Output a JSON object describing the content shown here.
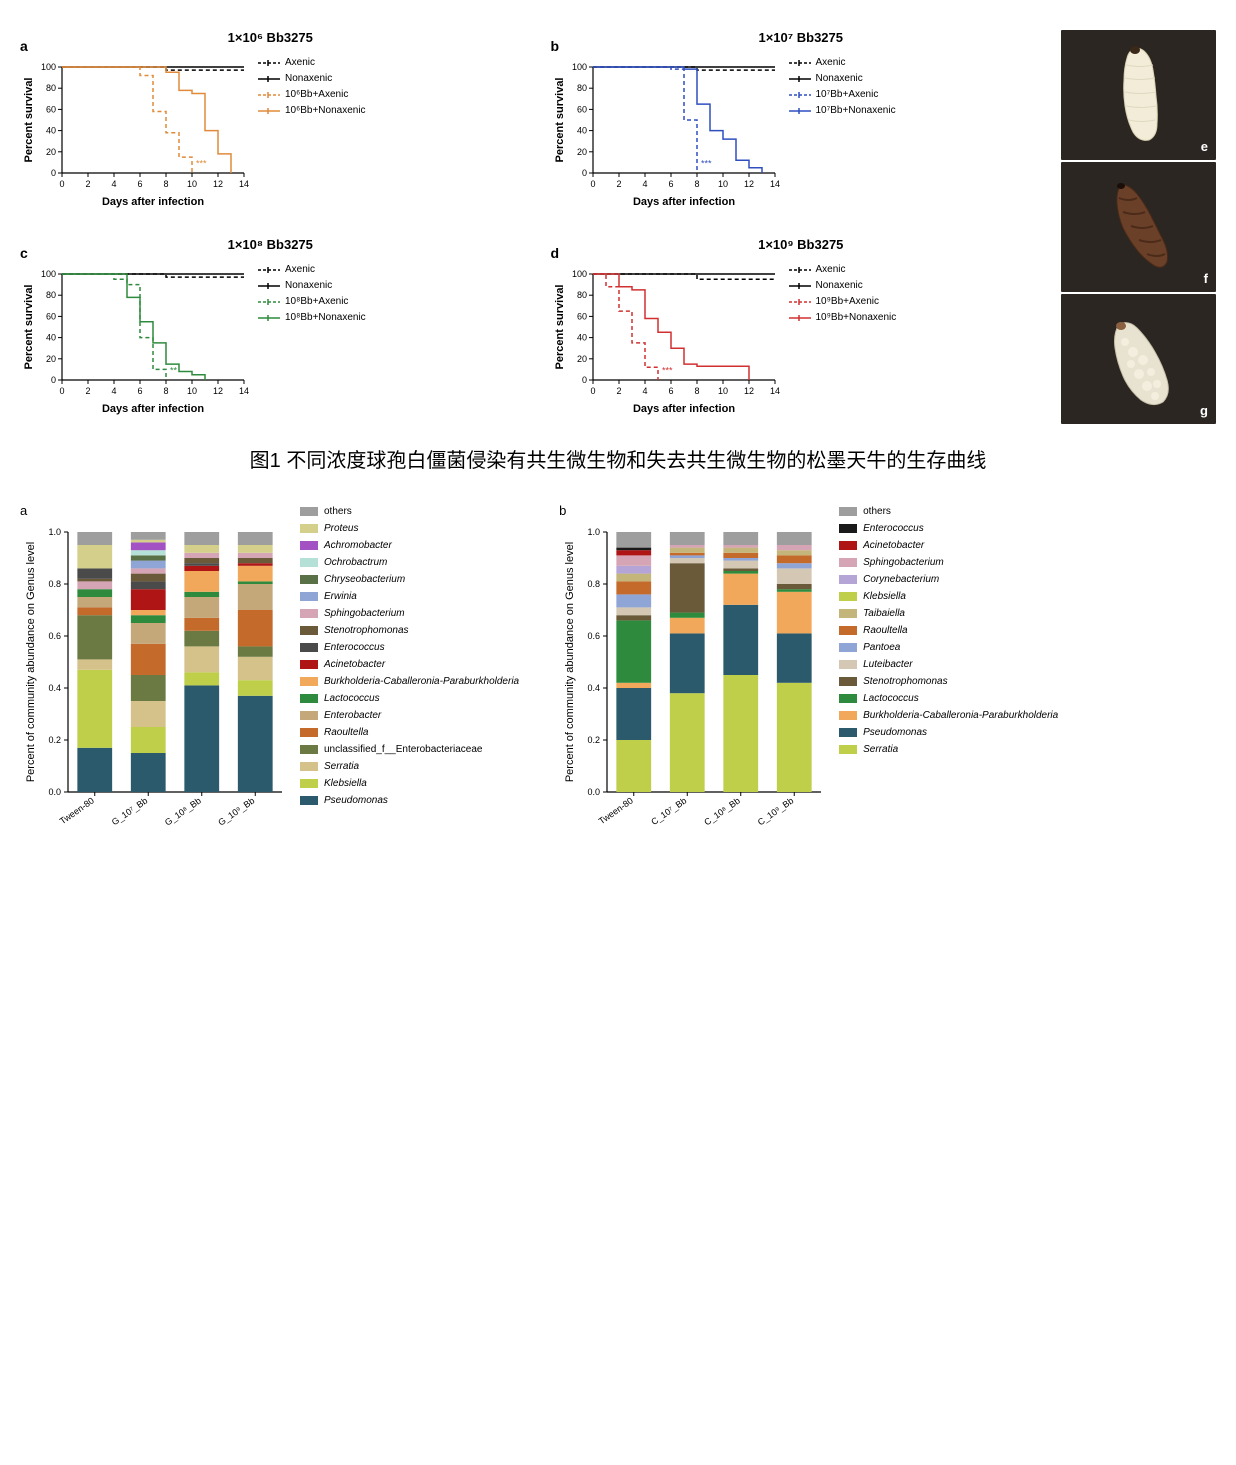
{
  "fig1": {
    "panels": [
      {
        "id": "a",
        "title": "1×10⁶ Bb3275",
        "color": "#e08a3a",
        "sig": "***",
        "legend": [
          "Axenic",
          "Nonaxenic",
          "10⁶Bb+Axenic",
          "10⁶Bb+Nonaxenic"
        ],
        "axenic_dashed": [
          [
            0,
            100
          ],
          [
            8,
            100
          ],
          [
            8,
            97
          ],
          [
            14,
            97
          ]
        ],
        "nonaxenic_solid": [
          [
            0,
            100
          ],
          [
            14,
            100
          ]
        ],
        "treat_dashed": [
          [
            0,
            100
          ],
          [
            6,
            100
          ],
          [
            6,
            92
          ],
          [
            7,
            92
          ],
          [
            7,
            58
          ],
          [
            8,
            58
          ],
          [
            8,
            38
          ],
          [
            9,
            38
          ],
          [
            9,
            15
          ],
          [
            10,
            15
          ],
          [
            10,
            0
          ]
        ],
        "treat_solid": [
          [
            0,
            100
          ],
          [
            8,
            100
          ],
          [
            8,
            95
          ],
          [
            9,
            95
          ],
          [
            9,
            78
          ],
          [
            10,
            78
          ],
          [
            10,
            75
          ],
          [
            11,
            75
          ],
          [
            11,
            40
          ],
          [
            12,
            40
          ],
          [
            12,
            18
          ],
          [
            13,
            18
          ],
          [
            13,
            0
          ]
        ]
      },
      {
        "id": "b",
        "title": "1×10⁷ Bb3275",
        "color": "#2f4fbf",
        "sig": "***",
        "legend": [
          "Axenic",
          "Nonaxenic",
          "10⁷Bb+Axenic",
          "10⁷Bb+Nonaxenic"
        ],
        "axenic_dashed": [
          [
            0,
            100
          ],
          [
            8,
            100
          ],
          [
            8,
            97
          ],
          [
            14,
            97
          ]
        ],
        "nonaxenic_solid": [
          [
            0,
            100
          ],
          [
            14,
            100
          ]
        ],
        "treat_dashed": [
          [
            0,
            100
          ],
          [
            6,
            100
          ],
          [
            6,
            98
          ],
          [
            7,
            98
          ],
          [
            7,
            50
          ],
          [
            8,
            50
          ],
          [
            8,
            0
          ]
        ],
        "treat_solid": [
          [
            0,
            100
          ],
          [
            7,
            100
          ],
          [
            7,
            98
          ],
          [
            8,
            98
          ],
          [
            8,
            65
          ],
          [
            9,
            65
          ],
          [
            9,
            40
          ],
          [
            10,
            40
          ],
          [
            10,
            32
          ],
          [
            11,
            32
          ],
          [
            11,
            12
          ],
          [
            12,
            12
          ],
          [
            12,
            5
          ],
          [
            13,
            5
          ],
          [
            13,
            0
          ]
        ]
      },
      {
        "id": "c",
        "title": "1×10⁸ Bb3275",
        "color": "#2e8b3d",
        "sig": "**",
        "legend": [
          "Axenic",
          "Nonaxenic",
          "10⁸Bb+Axenic",
          "10⁸Bb+Nonaxenic"
        ],
        "axenic_dashed": [
          [
            0,
            100
          ],
          [
            8,
            100
          ],
          [
            8,
            97
          ],
          [
            14,
            97
          ]
        ],
        "nonaxenic_solid": [
          [
            0,
            100
          ],
          [
            14,
            100
          ]
        ],
        "treat_dashed": [
          [
            0,
            100
          ],
          [
            4,
            100
          ],
          [
            4,
            95
          ],
          [
            5,
            95
          ],
          [
            5,
            90
          ],
          [
            6,
            90
          ],
          [
            6,
            40
          ],
          [
            7,
            40
          ],
          [
            7,
            10
          ],
          [
            8,
            10
          ],
          [
            8,
            0
          ]
        ],
        "treat_solid": [
          [
            0,
            100
          ],
          [
            5,
            100
          ],
          [
            5,
            78
          ],
          [
            6,
            78
          ],
          [
            6,
            55
          ],
          [
            7,
            55
          ],
          [
            7,
            35
          ],
          [
            8,
            35
          ],
          [
            8,
            15
          ],
          [
            9,
            15
          ],
          [
            9,
            8
          ],
          [
            10,
            8
          ],
          [
            10,
            5
          ],
          [
            11,
            5
          ],
          [
            11,
            0
          ]
        ]
      },
      {
        "id": "d",
        "title": "1×10⁹ Bb3275",
        "color": "#d13030",
        "sig": "***",
        "legend": [
          "Axenic",
          "Nonaxenic",
          "10⁹Bb+Axenic",
          "10⁹Bb+Nonaxenic"
        ],
        "axenic_dashed": [
          [
            0,
            100
          ],
          [
            8,
            100
          ],
          [
            8,
            95
          ],
          [
            14,
            95
          ]
        ],
        "nonaxenic_solid": [
          [
            0,
            100
          ],
          [
            14,
            100
          ]
        ],
        "treat_dashed": [
          [
            0,
            100
          ],
          [
            1,
            100
          ],
          [
            1,
            88
          ],
          [
            2,
            88
          ],
          [
            2,
            65
          ],
          [
            3,
            65
          ],
          [
            3,
            35
          ],
          [
            4,
            35
          ],
          [
            4,
            12
          ],
          [
            5,
            12
          ],
          [
            5,
            0
          ]
        ],
        "treat_solid": [
          [
            0,
            100
          ],
          [
            2,
            100
          ],
          [
            2,
            88
          ],
          [
            3,
            88
          ],
          [
            3,
            85
          ],
          [
            4,
            85
          ],
          [
            4,
            58
          ],
          [
            5,
            58
          ],
          [
            5,
            45
          ],
          [
            6,
            45
          ],
          [
            6,
            30
          ],
          [
            7,
            30
          ],
          [
            7,
            15
          ],
          [
            8,
            15
          ],
          [
            8,
            13
          ],
          [
            12,
            13
          ],
          [
            12,
            0
          ]
        ]
      }
    ],
    "ylabel": "Percent survival",
    "xlabel": "Days after infection",
    "xlim": [
      0,
      14
    ],
    "ylim": [
      0,
      100
    ],
    "ytick_step": 20,
    "xtick_step": 2,
    "ctrl_axenic_color": "#000000",
    "photos": [
      "e",
      "f",
      "g"
    ]
  },
  "caption1": "图1  不同浓度球孢白僵菌侵染有共生微生物和失去共生微生物的松墨天牛的生存曲线",
  "fig2": {
    "ylabel": "Percent of community abundance on Genus level",
    "panelA": {
      "id": "a",
      "categories": [
        "Tween-80",
        "G_10⁷_Bb",
        "G_10⁸_Bb",
        "G_10⁹_Bb"
      ],
      "legend": [
        {
          "name": "others",
          "color": "#9e9e9e",
          "italic": false
        },
        {
          "name": "Proteus",
          "color": "#d4cf8a",
          "italic": true
        },
        {
          "name": "Achromobacter",
          "color": "#a352c4",
          "italic": true
        },
        {
          "name": "Ochrobactrum",
          "color": "#b5e0d8",
          "italic": true
        },
        {
          "name": "Chryseobacterium",
          "color": "#5a7046",
          "italic": true
        },
        {
          "name": "Erwinia",
          "color": "#8fa5d6",
          "italic": true
        },
        {
          "name": "Sphingobacterium",
          "color": "#d6a5b5",
          "italic": true
        },
        {
          "name": "Stenotrophomonas",
          "color": "#6b5a3a",
          "italic": true
        },
        {
          "name": "Enterococcus",
          "color": "#4a4a4a",
          "italic": true
        },
        {
          "name": "Acinetobacter",
          "color": "#b01515",
          "italic": true
        },
        {
          "name": "Burkholderia-Caballeronia-Paraburkholderia",
          "color": "#f2a85a",
          "italic": true
        },
        {
          "name": "Lactococcus",
          "color": "#2e8b3d",
          "italic": true
        },
        {
          "name": "Enterobacter",
          "color": "#c4a87a",
          "italic": true
        },
        {
          "name": "Raoultella",
          "color": "#c46a2a",
          "italic": true
        },
        {
          "name": "unclassified_f__Enterobacteriaceae",
          "color": "#6b7a42",
          "italic": false
        },
        {
          "name": "Serratia",
          "color": "#d4c28a",
          "italic": true
        },
        {
          "name": "Klebsiella",
          "color": "#bfcf4a",
          "italic": true
        },
        {
          "name": "Pseudomonas",
          "color": "#2a5a6b",
          "italic": true
        }
      ],
      "stacks": [
        [
          [
            "#2a5a6b",
            0.17
          ],
          [
            "#bfcf4a",
            0.3
          ],
          [
            "#d4c28a",
            0.04
          ],
          [
            "#6b7a42",
            0.17
          ],
          [
            "#c46a2a",
            0.03
          ],
          [
            "#c4a87a",
            0.04
          ],
          [
            "#2e8b3d",
            0.03
          ],
          [
            "#d6a5b5",
            0.03
          ],
          [
            "#6b5a3a",
            0.01
          ],
          [
            "#4a4a4a",
            0.04
          ],
          [
            "#d4cf8a",
            0.09
          ],
          [
            "#9e9e9e",
            0.05
          ]
        ],
        [
          [
            "#2a5a6b",
            0.15
          ],
          [
            "#bfcf4a",
            0.1
          ],
          [
            "#d4c28a",
            0.1
          ],
          [
            "#6b7a42",
            0.1
          ],
          [
            "#c46a2a",
            0.12
          ],
          [
            "#c4a87a",
            0.08
          ],
          [
            "#2e8b3d",
            0.03
          ],
          [
            "#f2a85a",
            0.02
          ],
          [
            "#b01515",
            0.08
          ],
          [
            "#4a4a4a",
            0.03
          ],
          [
            "#6b5a3a",
            0.03
          ],
          [
            "#d6a5b5",
            0.02
          ],
          [
            "#8fa5d6",
            0.03
          ],
          [
            "#5a7046",
            0.02
          ],
          [
            "#b5e0d8",
            0.02
          ],
          [
            "#a352c4",
            0.03
          ],
          [
            "#d4cf8a",
            0.01
          ],
          [
            "#9e9e9e",
            0.03
          ]
        ],
        [
          [
            "#2a5a6b",
            0.41
          ],
          [
            "#bfcf4a",
            0.05
          ],
          [
            "#d4c28a",
            0.1
          ],
          [
            "#6b7a42",
            0.06
          ],
          [
            "#c46a2a",
            0.05
          ],
          [
            "#c4a87a",
            0.08
          ],
          [
            "#2e8b3d",
            0.02
          ],
          [
            "#f2a85a",
            0.08
          ],
          [
            "#b01515",
            0.02
          ],
          [
            "#4a4a4a",
            0.01
          ],
          [
            "#6b5a3a",
            0.02
          ],
          [
            "#d6a5b5",
            0.02
          ],
          [
            "#d4cf8a",
            0.03
          ],
          [
            "#9e9e9e",
            0.05
          ]
        ],
        [
          [
            "#2a5a6b",
            0.37
          ],
          [
            "#bfcf4a",
            0.06
          ],
          [
            "#d4c28a",
            0.09
          ],
          [
            "#6b7a42",
            0.04
          ],
          [
            "#c46a2a",
            0.14
          ],
          [
            "#c4a87a",
            0.1
          ],
          [
            "#2e8b3d",
            0.01
          ],
          [
            "#f2a85a",
            0.06
          ],
          [
            "#b01515",
            0.01
          ],
          [
            "#6b5a3a",
            0.02
          ],
          [
            "#d6a5b5",
            0.02
          ],
          [
            "#d4cf8a",
            0.03
          ],
          [
            "#9e9e9e",
            0.05
          ]
        ]
      ]
    },
    "panelB": {
      "id": "b",
      "categories": [
        "Tween-80",
        "C_10⁷_Bb",
        "C_10⁸_Bb",
        "C_10⁹_Bb"
      ],
      "legend": [
        {
          "name": "others",
          "color": "#9e9e9e",
          "italic": false
        },
        {
          "name": "Enterococcus",
          "color": "#1a1a1a",
          "italic": true
        },
        {
          "name": "Acinetobacter",
          "color": "#b01515",
          "italic": true
        },
        {
          "name": "Sphingobacterium",
          "color": "#d6a5b5",
          "italic": true
        },
        {
          "name": "Corynebacterium",
          "color": "#b5a5d6",
          "italic": true
        },
        {
          "name": "Klebsiella",
          "color": "#bfcf4a",
          "italic": true
        },
        {
          "name": "Taibaiella",
          "color": "#c4b57a",
          "italic": true
        },
        {
          "name": "Raoultella",
          "color": "#c46a2a",
          "italic": true
        },
        {
          "name": "Pantoea",
          "color": "#8fa5d6",
          "italic": true
        },
        {
          "name": "Luteibacter",
          "color": "#d4c8b5",
          "italic": true
        },
        {
          "name": "Stenotrophomonas",
          "color": "#6b5a3a",
          "italic": true
        },
        {
          "name": "Lactococcus",
          "color": "#2e8b3d",
          "italic": true
        },
        {
          "name": "Burkholderia-Caballeronia-Paraburkholderia",
          "color": "#f2a85a",
          "italic": true
        },
        {
          "name": "Pseudomonas",
          "color": "#2a5a6b",
          "italic": true
        },
        {
          "name": "Serratia",
          "color": "#bfcf4a",
          "italic": true
        }
      ],
      "stacks": [
        [
          [
            "#bfcf4a",
            0.2
          ],
          [
            "#2a5a6b",
            0.2
          ],
          [
            "#f2a85a",
            0.02
          ],
          [
            "#2e8b3d",
            0.24
          ],
          [
            "#6b5a3a",
            0.02
          ],
          [
            "#d4c8b5",
            0.03
          ],
          [
            "#8fa5d6",
            0.05
          ],
          [
            "#c46a2a",
            0.05
          ],
          [
            "#c4b57a",
            0.03
          ],
          [
            "#b5a5d6",
            0.03
          ],
          [
            "#d6a5b5",
            0.04
          ],
          [
            "#b01515",
            0.02
          ],
          [
            "#1a1a1a",
            0.01
          ],
          [
            "#9e9e9e",
            0.06
          ]
        ],
        [
          [
            "#bfcf4a",
            0.38
          ],
          [
            "#2a5a6b",
            0.23
          ],
          [
            "#f2a85a",
            0.06
          ],
          [
            "#2e8b3d",
            0.02
          ],
          [
            "#6b5a3a",
            0.19
          ],
          [
            "#d4c8b5",
            0.02
          ],
          [
            "#8fa5d6",
            0.01
          ],
          [
            "#c46a2a",
            0.01
          ],
          [
            "#c4b57a",
            0.02
          ],
          [
            "#d6a5b5",
            0.01
          ],
          [
            "#9e9e9e",
            0.05
          ]
        ],
        [
          [
            "#bfcf4a",
            0.45
          ],
          [
            "#2a5a6b",
            0.27
          ],
          [
            "#f2a85a",
            0.12
          ],
          [
            "#2e8b3d",
            0.01
          ],
          [
            "#6b5a3a",
            0.01
          ],
          [
            "#d4c8b5",
            0.03
          ],
          [
            "#8fa5d6",
            0.01
          ],
          [
            "#c46a2a",
            0.02
          ],
          [
            "#c4b57a",
            0.02
          ],
          [
            "#d6a5b5",
            0.01
          ],
          [
            "#9e9e9e",
            0.05
          ]
        ],
        [
          [
            "#bfcf4a",
            0.42
          ],
          [
            "#2a5a6b",
            0.19
          ],
          [
            "#f2a85a",
            0.16
          ],
          [
            "#2e8b3d",
            0.01
          ],
          [
            "#6b5a3a",
            0.02
          ],
          [
            "#d4c8b5",
            0.06
          ],
          [
            "#8fa5d6",
            0.02
          ],
          [
            "#c46a2a",
            0.03
          ],
          [
            "#c4b57a",
            0.02
          ],
          [
            "#d6a5b5",
            0.02
          ],
          [
            "#9e9e9e",
            0.05
          ]
        ]
      ]
    }
  }
}
